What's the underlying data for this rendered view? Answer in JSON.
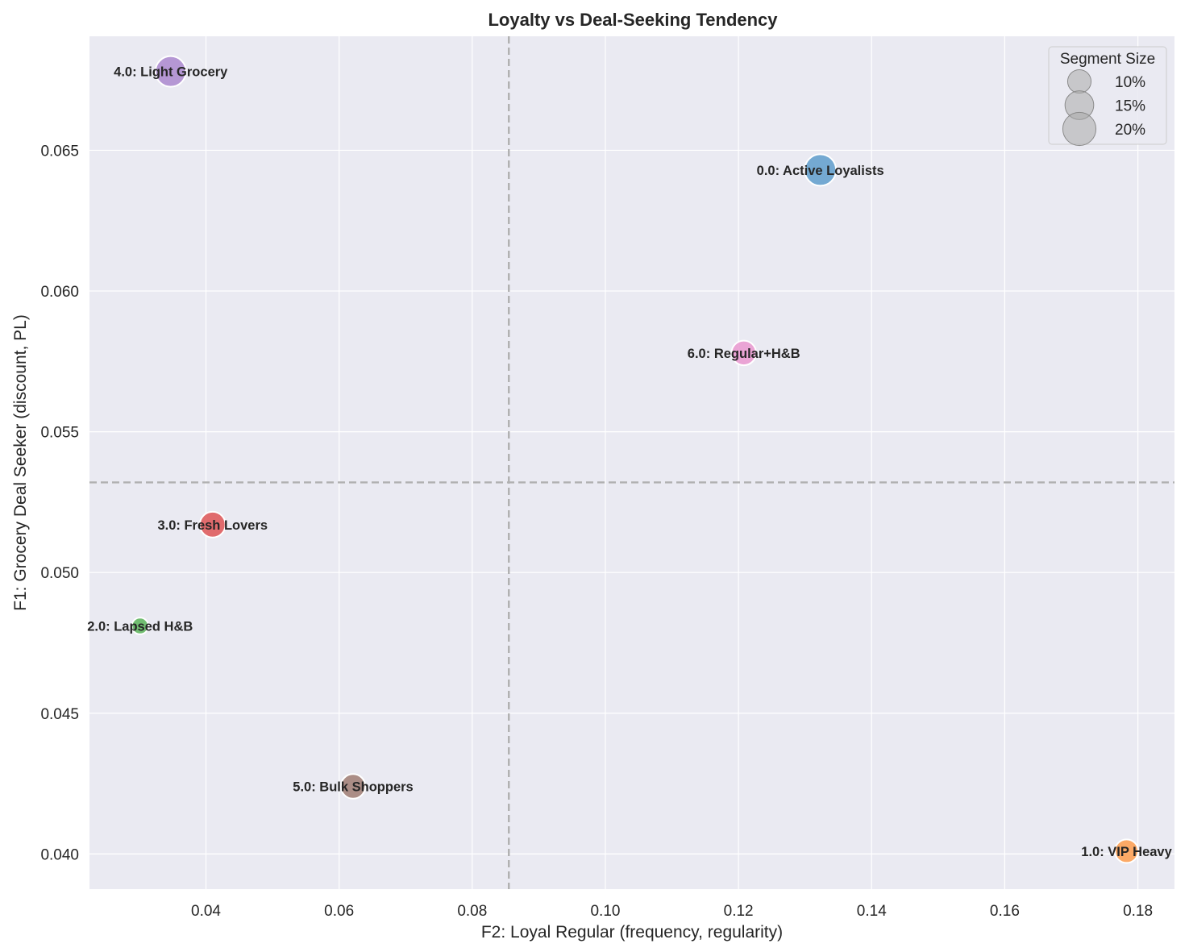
{
  "chart_data": {
    "type": "scatter",
    "title": "Loyalty vs Deal-Seeking Tendency",
    "xlabel": "F2: Loyal Regular (frequency, regularity)",
    "ylabel": "F1: Grocery Deal Seeker (discount, PL)",
    "xlim": [
      0.0225,
      0.1855
    ],
    "ylim": [
      0.03875,
      0.06905
    ],
    "xticks": [
      0.04,
      0.06,
      0.08,
      0.1,
      0.12,
      0.14,
      0.16,
      0.18
    ],
    "xtick_labels": [
      "0.04",
      "0.06",
      "0.08",
      "0.10",
      "0.12",
      "0.14",
      "0.16",
      "0.18"
    ],
    "yticks": [
      0.04,
      0.045,
      0.05,
      0.055,
      0.06,
      0.065
    ],
    "ytick_labels": [
      "0.040",
      "0.045",
      "0.050",
      "0.055",
      "0.060",
      "0.065"
    ],
    "grid": true,
    "reference_lines": {
      "x": 0.0855,
      "y": 0.0532
    },
    "points": [
      {
        "label": "0.0: Active Loyalists",
        "x": 0.1323,
        "y": 0.0643,
        "size": 18,
        "color": "#5f9ecd"
      },
      {
        "label": "1.0: VIP Heavy",
        "x": 0.1783,
        "y": 0.0401,
        "size": 10,
        "color": "#ff9d4d"
      },
      {
        "label": "2.0: Lapsed H&B",
        "x": 0.0301,
        "y": 0.0481,
        "size": 5,
        "color": "#5cb55a"
      },
      {
        "label": "3.0: Fresh Lovers",
        "x": 0.041,
        "y": 0.0517,
        "size": 12,
        "color": "#de5556"
      },
      {
        "label": "4.0: Light Grocery",
        "x": 0.0347,
        "y": 0.0678,
        "size": 17,
        "color": "#ac88cf"
      },
      {
        "label": "5.0: Bulk Shoppers",
        "x": 0.0621,
        "y": 0.0424,
        "size": 11,
        "color": "#a07d73"
      },
      {
        "label": "6.0: Regular+H&B",
        "x": 0.1208,
        "y": 0.0578,
        "size": 11,
        "color": "#ea98d0"
      }
    ],
    "legend": {
      "title": "Segment Size",
      "position": "top-right",
      "entries": [
        {
          "label": "10%",
          "size": 10
        },
        {
          "label": "15%",
          "size": 15
        },
        {
          "label": "20%",
          "size": 20
        }
      ]
    }
  },
  "colors": {
    "plot_background": "#eaeaf2",
    "grid": "#ffffff",
    "reference_line": "#b0b0b0",
    "legend_marker": "#a9a9a9"
  }
}
